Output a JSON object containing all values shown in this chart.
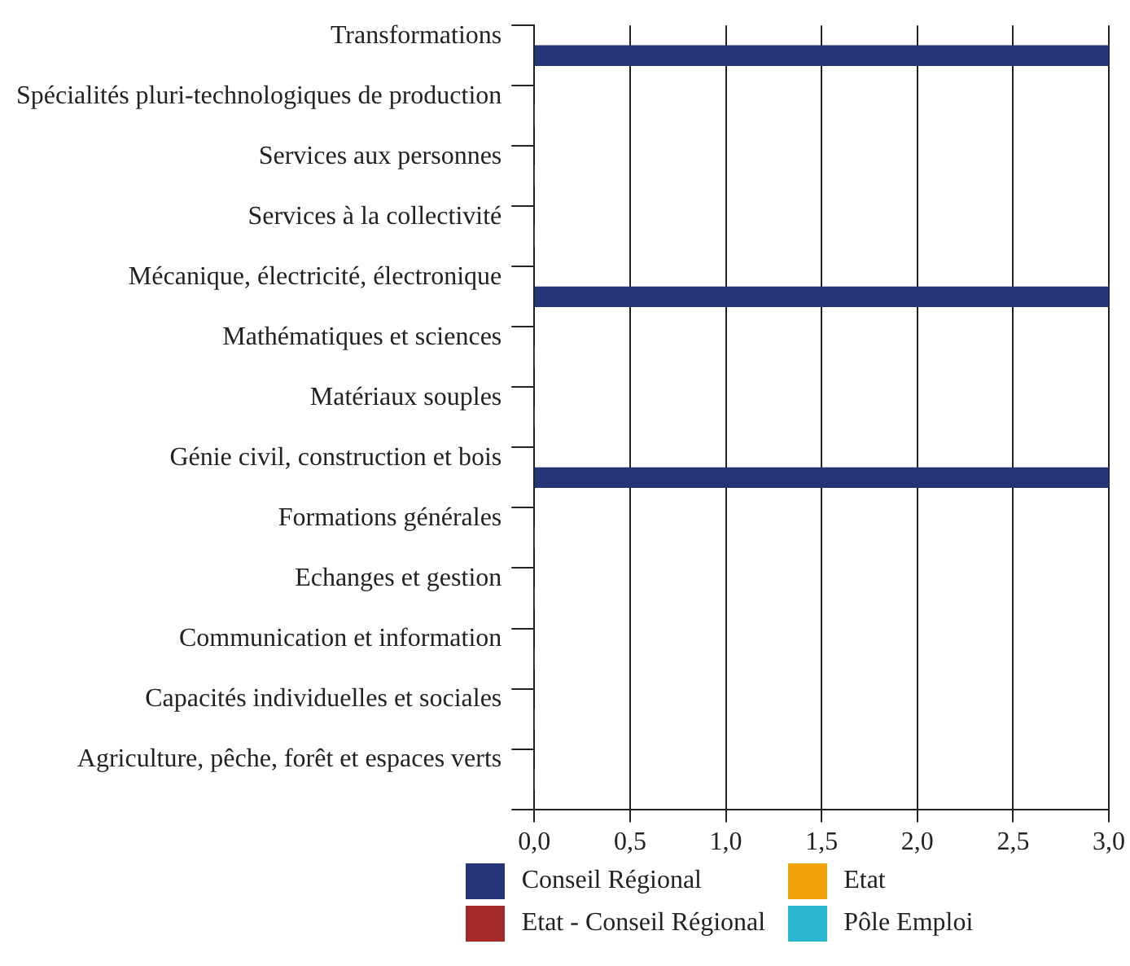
{
  "chart_data": {
    "type": "bar",
    "orientation": "horizontal",
    "stacked": true,
    "categories": [
      "Transformations",
      "Spécialités pluri-technologiques de production",
      "Services aux personnes",
      "Services à la collectivité",
      "Mécanique, électricité, électronique",
      "Mathématiques et sciences",
      "Matériaux souples",
      "Génie civil, construction et bois",
      "Formations générales",
      "Echanges et gestion",
      "Communication et information",
      "Capacités individuelles et sociales",
      "Agriculture, pêche, forêt et espaces verts"
    ],
    "series": [
      {
        "name": "Conseil Régional",
        "color": "#253474",
        "values": [
          3,
          0,
          0,
          0,
          3,
          0,
          0,
          3,
          0,
          0,
          0,
          0,
          0
        ]
      },
      {
        "name": "Etat - Conseil Régional",
        "color": "#a52a2a",
        "values": [
          0,
          0,
          0,
          0,
          0,
          0,
          0,
          0,
          0,
          0,
          0,
          0,
          0
        ]
      },
      {
        "name": "Etat",
        "color": "#f0a30a",
        "values": [
          0,
          0,
          0,
          0,
          0,
          0,
          0,
          0,
          0,
          0,
          0,
          0,
          0
        ]
      },
      {
        "name": "Pôle Emploi",
        "color": "#2bb5d1",
        "values": [
          0,
          0,
          0,
          0,
          0,
          0,
          0,
          0,
          0,
          0,
          0,
          0,
          0
        ]
      }
    ],
    "xlim": [
      0,
      3
    ],
    "xticks": [
      {
        "value": 0,
        "label": "0,0"
      },
      {
        "value": 0.5,
        "label": "0,5"
      },
      {
        "value": 1,
        "label": "1,0"
      },
      {
        "value": 1.5,
        "label": "1,5"
      },
      {
        "value": 2,
        "label": "2,0"
      },
      {
        "value": 2.5,
        "label": "2,5"
      },
      {
        "value": 3,
        "label": "3,0"
      }
    ],
    "grid": "x",
    "legend": "bottom"
  }
}
